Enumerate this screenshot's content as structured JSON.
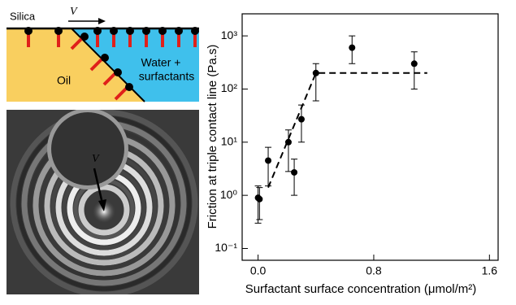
{
  "schematic": {
    "silica": "Silica",
    "velocity": "V",
    "oil": "Oil",
    "water_line1": "Water +",
    "water_line2": "surfactants"
  },
  "micrograph": {
    "velocity": "V"
  },
  "chart_data": {
    "type": "scatter",
    "xlabel": "Surfactant surface concentration (μmol/m²)",
    "ylabel": "Friction at triple contact line (Pa.s)",
    "xlim": [
      -0.11,
      1.66
    ],
    "ylim": [
      0.06,
      2600
    ],
    "log_y": true,
    "xticks": [
      {
        "value": 0,
        "label": "0.0"
      },
      0.8,
      1.6
    ],
    "yticks": [
      {
        "value": 0.1,
        "label": "10⁻¹"
      },
      {
        "value": 1,
        "label": "10⁰"
      },
      {
        "value": 10,
        "label": "10¹"
      },
      {
        "value": 100,
        "label": "10²"
      },
      {
        "value": 1000,
        "label": "10³"
      }
    ],
    "series": [
      {
        "color": "#000000",
        "x": [
          0.0,
          0.01,
          0.07,
          0.21,
          0.25,
          0.3,
          0.4,
          0.65,
          1.08
        ],
        "values": [
          0.9,
          0.85,
          4.5,
          10,
          2.7,
          27,
          200,
          600,
          300
        ],
        "err_low": [
          0.3,
          0.35,
          1.5,
          2.8,
          1,
          10,
          60,
          300,
          100
        ],
        "err_high": [
          1.5,
          1.4,
          8,
          17,
          4.8,
          50,
          300,
          1000,
          500
        ]
      }
    ],
    "fit": {
      "color": "#000000",
      "x": [
        0.07,
        0.4,
        1.17
      ],
      "values": [
        1.4,
        200,
        200
      ]
    }
  }
}
